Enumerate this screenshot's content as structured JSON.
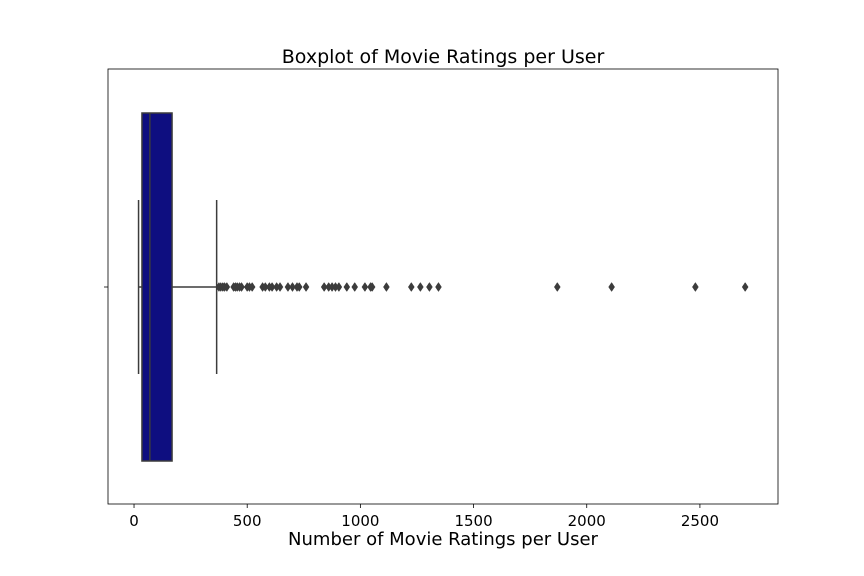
{
  "chart_data": {
    "type": "boxplot",
    "title": "Boxplot of Movie Ratings per User",
    "xlabel": "Number of Movie Ratings per User",
    "ylabel": "",
    "xlim": [
      -115,
      2845
    ],
    "xticks": [
      0,
      500,
      1000,
      1500,
      2000,
      2500
    ],
    "grid": false,
    "box": {
      "whisker_low": 20,
      "q1": 35,
      "median": 70,
      "q3": 168,
      "whisker_high": 365,
      "color": "#0e0e80"
    },
    "outliers": [
      375,
      383,
      392,
      400,
      410,
      440,
      448,
      456,
      466,
      475,
      500,
      510,
      522,
      568,
      580,
      598,
      610,
      630,
      645,
      680,
      700,
      720,
      730,
      760,
      840,
      860,
      875,
      890,
      905,
      940,
      975,
      1020,
      1045,
      1052,
      1115,
      1225,
      1265,
      1305,
      1345,
      1870,
      2110,
      2480,
      2700
    ]
  }
}
